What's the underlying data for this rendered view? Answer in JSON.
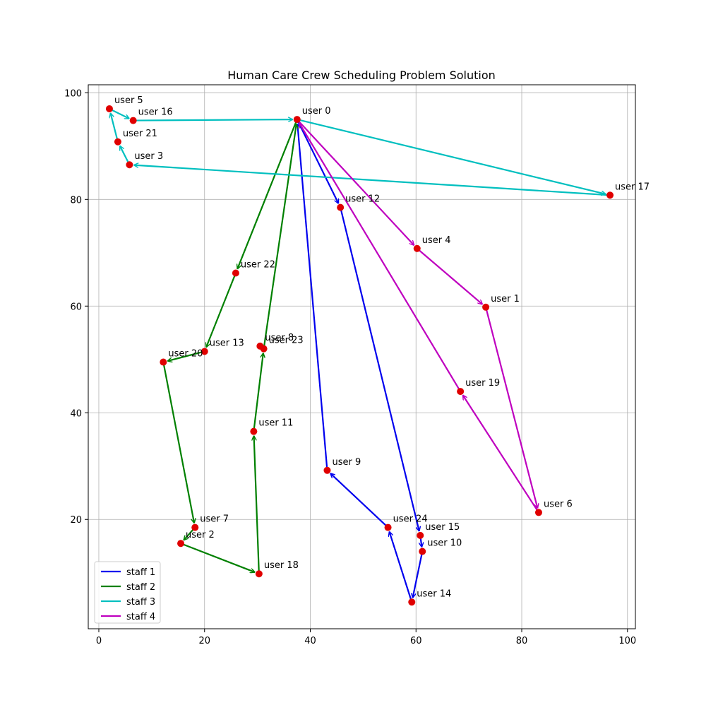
{
  "chart_data": {
    "type": "line",
    "title": "Human Care Crew Scheduling Problem Solution",
    "xlabel": "",
    "ylabel": "",
    "xlim": [
      -2,
      101.5
    ],
    "ylim": [
      -0.5,
      101.5
    ],
    "x_ticks": [
      0,
      20,
      40,
      60,
      80,
      100
    ],
    "y_ticks": [
      20,
      40,
      60,
      80,
      100
    ],
    "x_tick_labels": [
      "0",
      "20",
      "40",
      "60",
      "80",
      "100"
    ],
    "y_tick_labels": [
      "20",
      "40",
      "60",
      "80",
      "100"
    ],
    "grid": true,
    "legend_position": "lower-left",
    "node_color": "#e00000",
    "nodes": [
      {
        "id": 0,
        "label": "user 0",
        "x": 37.5,
        "y": 95.0
      },
      {
        "id": 1,
        "label": "user 1",
        "x": 73.2,
        "y": 59.8
      },
      {
        "id": 2,
        "label": "user 2",
        "x": 15.5,
        "y": 15.5
      },
      {
        "id": 3,
        "label": "user 3",
        "x": 5.8,
        "y": 86.5
      },
      {
        "id": 4,
        "label": "user 4",
        "x": 60.2,
        "y": 70.8
      },
      {
        "id": 5,
        "label": "user 5",
        "x": 2.0,
        "y": 97.0
      },
      {
        "id": 6,
        "label": "user 6",
        "x": 83.2,
        "y": 21.3
      },
      {
        "id": 7,
        "label": "user 7",
        "x": 18.2,
        "y": 18.5
      },
      {
        "id": 8,
        "label": "user 8",
        "x": 30.5,
        "y": 52.5
      },
      {
        "id": 9,
        "label": "user 9",
        "x": 43.2,
        "y": 29.2
      },
      {
        "id": 10,
        "label": "user 10",
        "x": 61.2,
        "y": 14.0
      },
      {
        "id": 11,
        "label": "user 11",
        "x": 29.3,
        "y": 36.5
      },
      {
        "id": 12,
        "label": "user 12",
        "x": 45.7,
        "y": 78.5
      },
      {
        "id": 13,
        "label": "user 13",
        "x": 20.0,
        "y": 51.5
      },
      {
        "id": 14,
        "label": "user 14",
        "x": 59.2,
        "y": 4.5
      },
      {
        "id": 15,
        "label": "user 15",
        "x": 60.8,
        "y": 17.0
      },
      {
        "id": 16,
        "label": "user 16",
        "x": 6.5,
        "y": 94.8
      },
      {
        "id": 17,
        "label": "user 17",
        "x": 96.7,
        "y": 80.8
      },
      {
        "id": 18,
        "label": "user 18",
        "x": 30.3,
        "y": 9.8
      },
      {
        "id": 19,
        "label": "user 19",
        "x": 68.4,
        "y": 44.0
      },
      {
        "id": 20,
        "label": "user 20",
        "x": 12.2,
        "y": 49.5
      },
      {
        "id": 21,
        "label": "user 21",
        "x": 3.6,
        "y": 90.8
      },
      {
        "id": 22,
        "label": "user 22",
        "x": 25.9,
        "y": 66.2
      },
      {
        "id": 23,
        "label": "user 23",
        "x": 31.2,
        "y": 52.0
      },
      {
        "id": 24,
        "label": "user 24",
        "x": 54.7,
        "y": 18.5
      }
    ],
    "series": [
      {
        "name": "staff 1",
        "color": "#0000ee",
        "route": [
          0,
          12,
          15,
          10,
          14,
          24,
          9,
          0
        ]
      },
      {
        "name": "staff 2",
        "color": "#008000",
        "route": [
          0,
          22,
          13,
          20,
          7,
          2,
          18,
          11,
          23,
          0
        ]
      },
      {
        "name": "staff 3",
        "color": "#00bfbf",
        "route": [
          0,
          17,
          3,
          21,
          5,
          16,
          0
        ]
      },
      {
        "name": "staff 4",
        "color": "#bf00bf",
        "route": [
          0,
          4,
          1,
          6,
          19,
          0
        ]
      }
    ]
  }
}
